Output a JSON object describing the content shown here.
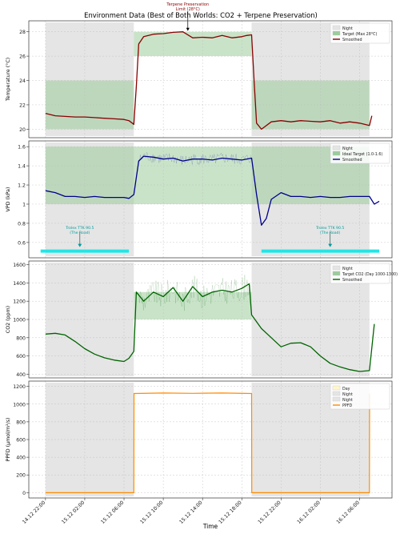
{
  "figure": {
    "title": "Environment Data (Best of Both Worlds: CO2 + Terpene Preservation)",
    "xlabel": "Time",
    "x_ticks": [
      "14.12 22:00",
      "15.12 02:00",
      "15.12 06:00",
      "15.12 10:00",
      "15.12 14:00",
      "15.12 18:00",
      "15.12 22:00",
      "16.12 02:00",
      "16.12 06:00"
    ]
  },
  "colors": {
    "night_band": "#e5e5e5",
    "target_band": "#9ccc9c",
    "temperature": "#8b0000",
    "vpd": "#00008b",
    "co2": "#006400",
    "ppfd": "#ff8c00",
    "trolex_bar": "#22e6e6",
    "trolex_text": "#009b9b",
    "annotation": "#8b0000"
  },
  "chart_data": [
    {
      "type": "line",
      "panel": "temperature",
      "title": "Environment Data (Best of Both Worlds: CO2 + Terpene Preservation)",
      "xlabel": "",
      "ylabel": "Temperature (°C)",
      "x_range": [
        "14.12 22:00",
        "16.12 09:00"
      ],
      "ylim": [
        19.3,
        28.9
      ],
      "y_ticks": [
        20,
        22,
        24,
        26,
        28
      ],
      "grid": true,
      "legend_position": "top-right",
      "legend": [
        "Night",
        "Target (Max 28°C)",
        "Smoothed"
      ],
      "night_periods": [
        [
          "14.12 22:00",
          "15.12 07:00"
        ],
        [
          "15.12 19:00",
          "16.12 07:00"
        ]
      ],
      "target_bands": [
        {
          "x": [
            "14.12 22:00",
            "15.12 07:00"
          ],
          "y": [
            20,
            24
          ]
        },
        {
          "x": [
            "15.12 07:00",
            "15.12 19:00"
          ],
          "y": [
            26,
            28
          ]
        },
        {
          "x": [
            "15.12 19:00",
            "16.12 07:00"
          ],
          "y": [
            20,
            24
          ]
        }
      ],
      "annotation": {
        "text_lines": [
          "Terpene Preservation",
          "Limit (28°C)"
        ],
        "x": "15.12 12:30",
        "y": 28.0
      },
      "series": [
        {
          "name": "Smoothed",
          "x": [
            "14.12 22:00",
            "14.12 23:00",
            "15.12 00:00",
            "15.12 01:00",
            "15.12 02:00",
            "15.12 03:00",
            "15.12 04:00",
            "15.12 05:00",
            "15.12 06:00",
            "15.12 06:30",
            "15.12 07:00",
            "15.12 07:15",
            "15.12 07:30",
            "15.12 08:00",
            "15.12 09:00",
            "15.12 10:00",
            "15.12 11:00",
            "15.12 12:00",
            "15.12 13:00",
            "15.12 14:00",
            "15.12 15:00",
            "15.12 16:00",
            "15.12 17:00",
            "15.12 18:00",
            "15.12 18:30",
            "15.12 19:00",
            "15.12 19:15",
            "15.12 19:30",
            "15.12 20:00",
            "15.12 21:00",
            "15.12 22:00",
            "15.12 23:00",
            "16.12 00:00",
            "16.12 01:00",
            "16.12 02:00",
            "16.12 03:00",
            "16.12 04:00",
            "16.12 05:00",
            "16.12 06:00",
            "16.12 06:30",
            "16.12 07:00",
            "16.12 07:15"
          ],
          "y": [
            21.3,
            21.1,
            21.05,
            21.0,
            21.0,
            20.95,
            20.9,
            20.85,
            20.8,
            20.7,
            20.4,
            23.5,
            27.0,
            27.6,
            27.8,
            27.85,
            27.95,
            28.0,
            27.5,
            27.55,
            27.5,
            27.7,
            27.5,
            27.6,
            27.7,
            27.75,
            24.0,
            20.5,
            20.0,
            20.6,
            20.7,
            20.6,
            20.7,
            20.65,
            20.6,
            20.7,
            20.5,
            20.6,
            20.5,
            20.4,
            20.3,
            21.1
          ]
        }
      ]
    },
    {
      "type": "line",
      "panel": "vpd",
      "xlabel": "",
      "ylabel": "VPD (kPa)",
      "x_range": [
        "14.12 22:00",
        "16.12 09:00"
      ],
      "ylim": [
        0.44,
        1.66
      ],
      "y_ticks": [
        0.6,
        0.8,
        1.0,
        1.2,
        1.4,
        1.6
      ],
      "grid": true,
      "legend_position": "top-right",
      "legend": [
        "Night",
        "Ideal Target (1.0-1.6)",
        "Smoothed"
      ],
      "night_periods": [
        [
          "14.12 22:00",
          "15.12 07:00"
        ],
        [
          "15.12 19:00",
          "16.12 07:00"
        ]
      ],
      "target_bands": [
        {
          "x": [
            "14.12 22:00",
            "16.12 07:00"
          ],
          "y": [
            1.0,
            1.6
          ]
        }
      ],
      "annotations": [
        {
          "text_lines": [
            "Trolex TTK 90.5",
            "(The Road)"
          ],
          "x": "15.12 01:30",
          "y": 0.68
        },
        {
          "text_lines": [
            "Trolex TTK 90.5",
            "(The Road)"
          ],
          "x": "16.12 03:00",
          "y": 0.68
        }
      ],
      "road_segments": [
        {
          "x": [
            "14.12 21:30",
            "15.12 06:30"
          ],
          "y": 0.51
        },
        {
          "x": [
            "15.12 20:00",
            "16.12 08:00"
          ],
          "y": 0.51
        }
      ],
      "series": [
        {
          "name": "Smoothed",
          "x": [
            "14.12 22:00",
            "14.12 23:00",
            "15.12 00:00",
            "15.12 01:00",
            "15.12 02:00",
            "15.12 03:00",
            "15.12 04:00",
            "15.12 05:00",
            "15.12 06:00",
            "15.12 06:30",
            "15.12 07:00",
            "15.12 07:30",
            "15.12 08:00",
            "15.12 09:00",
            "15.12 10:00",
            "15.12 11:00",
            "15.12 12:00",
            "15.12 13:00",
            "15.12 14:00",
            "15.12 15:00",
            "15.12 16:00",
            "15.12 17:00",
            "15.12 18:00",
            "15.12 19:00",
            "15.12 19:30",
            "15.12 20:00",
            "15.12 20:30",
            "15.12 21:00",
            "15.12 22:00",
            "15.12 23:00",
            "16.12 00:00",
            "16.12 01:00",
            "16.12 02:00",
            "16.12 03:00",
            "16.12 04:00",
            "16.12 05:00",
            "16.12 06:00",
            "16.12 07:00",
            "16.12 07:30",
            "16.12 08:00"
          ],
          "y": [
            1.14,
            1.12,
            1.08,
            1.08,
            1.07,
            1.08,
            1.07,
            1.07,
            1.07,
            1.06,
            1.1,
            1.45,
            1.5,
            1.49,
            1.47,
            1.48,
            1.45,
            1.47,
            1.47,
            1.46,
            1.48,
            1.47,
            1.46,
            1.48,
            1.1,
            0.78,
            0.85,
            1.05,
            1.12,
            1.08,
            1.08,
            1.07,
            1.08,
            1.07,
            1.07,
            1.08,
            1.08,
            1.08,
            1.0,
            1.03
          ]
        }
      ]
    },
    {
      "type": "line",
      "panel": "co2",
      "xlabel": "",
      "ylabel": "CO2 (ppm)",
      "x_range": [
        "14.12 22:00",
        "16.12 09:00"
      ],
      "ylim": [
        360,
        1640
      ],
      "y_ticks": [
        400,
        600,
        800,
        1000,
        1200,
        1400,
        1600
      ],
      "grid": true,
      "legend_position": "top-right",
      "legend": [
        "Night",
        "Target CO2 (Day 1000-1300)",
        "Smoothed"
      ],
      "night_periods": [
        [
          "14.12 22:00",
          "15.12 07:00"
        ],
        [
          "15.12 19:00",
          "16.12 07:00"
        ]
      ],
      "target_bands": [
        {
          "x": [
            "15.12 07:00",
            "15.12 19:00"
          ],
          "y": [
            1000,
            1300
          ]
        }
      ],
      "series": [
        {
          "name": "Smoothed",
          "x": [
            "14.12 22:00",
            "14.12 23:00",
            "15.12 00:00",
            "15.12 01:00",
            "15.12 02:00",
            "15.12 03:00",
            "15.12 04:00",
            "15.12 05:00",
            "15.12 06:00",
            "15.12 06:30",
            "15.12 07:00",
            "15.12 07:15",
            "15.12 08:00",
            "15.12 09:00",
            "15.12 10:00",
            "15.12 11:00",
            "15.12 12:00",
            "15.12 13:00",
            "15.12 14:00",
            "15.12 15:00",
            "15.12 16:00",
            "15.12 17:00",
            "15.12 18:00",
            "15.12 18:45",
            "15.12 19:00",
            "15.12 20:00",
            "15.12 21:00",
            "15.12 22:00",
            "15.12 23:00",
            "16.12 00:00",
            "16.12 01:00",
            "16.12 02:00",
            "16.12 03:00",
            "16.12 04:00",
            "16.12 05:00",
            "16.12 06:00",
            "16.12 07:00",
            "16.12 07:30"
          ],
          "y": [
            840,
            848,
            830,
            760,
            680,
            620,
            580,
            555,
            540,
            575,
            650,
            1300,
            1200,
            1300,
            1250,
            1350,
            1200,
            1360,
            1250,
            1300,
            1320,
            1300,
            1340,
            1390,
            1050,
            900,
            800,
            700,
            740,
            745,
            700,
            600,
            520,
            480,
            450,
            430,
            440,
            950
          ]
        }
      ]
    },
    {
      "type": "line",
      "panel": "ppfd",
      "xlabel": "Time",
      "ylabel": "PPFD (µmol/m²/s)",
      "x_range": [
        "14.12 22:00",
        "16.12 09:00"
      ],
      "ylim": [
        -60,
        1260
      ],
      "y_ticks": [
        0,
        200,
        400,
        600,
        800,
        1000,
        1200
      ],
      "grid": true,
      "legend_position": "top-right",
      "legend": [
        "Day",
        "Night",
        "Night",
        "PPFD"
      ],
      "night_periods": [
        [
          "14.12 22:00",
          "15.12 07:00"
        ],
        [
          "15.12 19:00",
          "16.12 07:00"
        ]
      ],
      "series": [
        {
          "name": "PPFD",
          "x": [
            "14.12 22:00",
            "15.12 07:00",
            "15.12 07:01",
            "15.12 10:00",
            "15.12 13:00",
            "15.12 16:00",
            "15.12 19:00",
            "15.12 19:01",
            "16.12 07:00",
            "16.12 07:01"
          ],
          "y": [
            0,
            0,
            1120,
            1125,
            1122,
            1125,
            1120,
            0,
            0,
            1120
          ]
        }
      ]
    }
  ]
}
